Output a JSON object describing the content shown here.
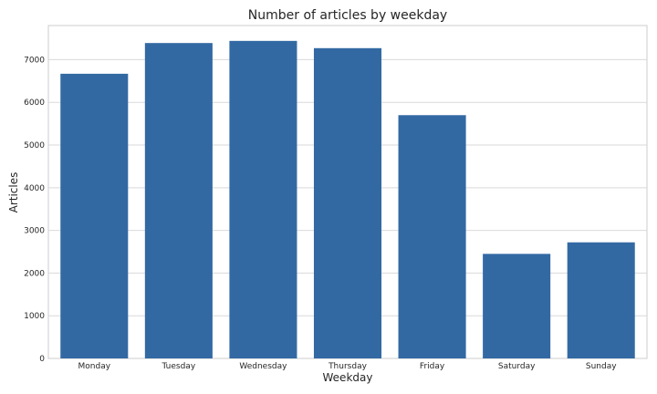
{
  "chart_data": {
    "type": "bar",
    "title": "Number of articles by weekday",
    "xlabel": "Weekday",
    "ylabel": "Articles",
    "categories": [
      "Monday",
      "Tuesday",
      "Wednesday",
      "Thursday",
      "Friday",
      "Saturday",
      "Sunday"
    ],
    "values": [
      6670,
      7390,
      7440,
      7270,
      5700,
      2450,
      2720
    ],
    "ylim": [
      0,
      7800
    ],
    "yticks": [
      0,
      1000,
      2000,
      3000,
      4000,
      5000,
      6000,
      7000
    ],
    "grid": true,
    "bar_color": "#3369a3"
  }
}
